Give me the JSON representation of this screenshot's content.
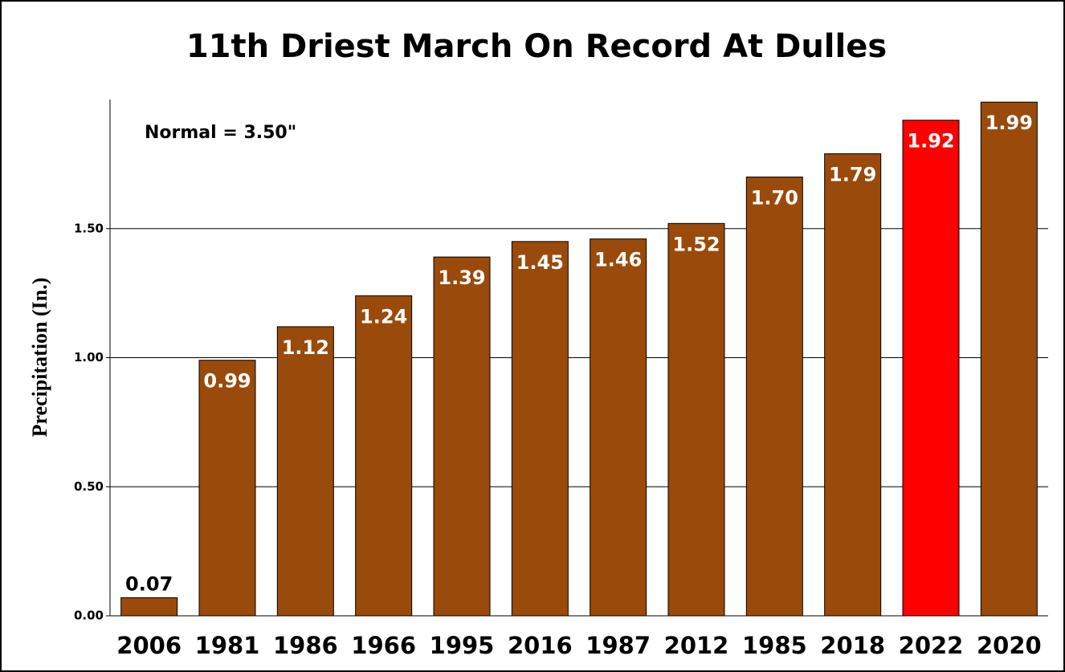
{
  "chart_data": {
    "type": "bar",
    "title": "11th Driest March On Record At Dulles",
    "annotation": "Normal = 3.50\"",
    "y_label": "Precipitation (In.)",
    "categories": [
      "2006",
      "1981",
      "1986",
      "1966",
      "1995",
      "2016",
      "1987",
      "2012",
      "1985",
      "2018",
      "2022",
      "2020"
    ],
    "values": [
      0.07,
      0.99,
      1.12,
      1.24,
      1.39,
      1.45,
      1.46,
      1.52,
      1.7,
      1.79,
      1.92,
      1.99
    ],
    "value_labels": [
      "0.07",
      "0.99",
      "1.12",
      "1.24",
      "1.39",
      "1.45",
      "1.46",
      "1.52",
      "1.70",
      "1.79",
      "1.92",
      "1.99"
    ],
    "colors": [
      "#9a4a0a",
      "#9a4a0a",
      "#9a4a0a",
      "#9a4a0a",
      "#9a4a0a",
      "#9a4a0a",
      "#9a4a0a",
      "#9a4a0a",
      "#9a4a0a",
      "#9a4a0a",
      "#ff0000",
      "#9a4a0a"
    ],
    "ylim": [
      0,
      2.0
    ],
    "yticks": [
      {
        "value": 0,
        "label": "0.00"
      },
      {
        "value": 0.5,
        "label": "0.50"
      },
      {
        "value": 1.0,
        "label": "1.00"
      },
      {
        "value": 1.5,
        "label": "1.50"
      }
    ],
    "grid": true
  }
}
